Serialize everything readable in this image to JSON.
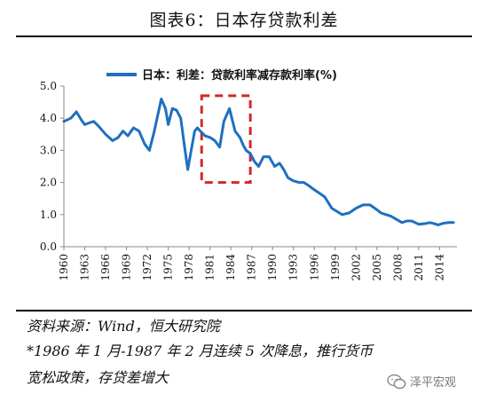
{
  "header": {
    "title": "图表6：日本存贷款利差"
  },
  "footer": {
    "source": "资料来源：Wind，恒大研究院",
    "note_line1": "*1986 年 1 月-1987 年 2 月连续 5 次降息，推行货币",
    "note_line2": "宽松政策，存贷差增大"
  },
  "watermark": {
    "text": "泽平宏观",
    "icon": "wechat-icon"
  },
  "colors": {
    "series": "#1F6FC0",
    "highlight": "#D62728"
  },
  "chart_data": {
    "type": "line",
    "legend": "日本：利差：贷款利率减存款利率(%)",
    "legend_position": "top",
    "ylim": [
      0,
      5
    ],
    "y_ticks": [
      "0.0",
      "1.0",
      "2.0",
      "3.0",
      "4.0",
      "5.0"
    ],
    "x_ticks": [
      "1960",
      "1963",
      "1966",
      "1969",
      "1972",
      "1975",
      "1978",
      "1981",
      "1984",
      "1987",
      "1990",
      "1993",
      "1996",
      "1999",
      "2002",
      "2005",
      "2008",
      "2011",
      "2014"
    ],
    "xlim": [
      1960,
      2016.5
    ],
    "grid": false,
    "highlight_range": {
      "x": [
        1979.8,
        1986.8
      ],
      "y": [
        2.0,
        4.7
      ]
    },
    "series": [
      {
        "name": "日本：利差：贷款利率减存款利率(%)",
        "x": [
          1960,
          1961,
          1961.8,
          1962.5,
          1963,
          1963.6,
          1964.3,
          1965,
          1966,
          1967,
          1967.8,
          1968.5,
          1969.2,
          1970,
          1970.8,
          1971.6,
          1972.3,
          1973,
          1974,
          1974.6,
          1975,
          1975.6,
          1976.2,
          1976.8,
          1977.3,
          1977.8,
          1978.3,
          1978.8,
          1979.2,
          1979.6,
          1980.3,
          1981,
          1981.7,
          1982.4,
          1983,
          1983.8,
          1984.6,
          1985.3,
          1985.8,
          1986.2,
          1986.8,
          1987.4,
          1988,
          1988.7,
          1989.5,
          1990.3,
          1991,
          1991.6,
          1992.2,
          1993,
          1993.8,
          1994.5,
          1995.2,
          1995.8,
          1996.5,
          1997.5,
          1998.5,
          2000,
          2001,
          2002,
          2003,
          2004,
          2005,
          2005.6,
          2006.3,
          2007,
          2007.8,
          2008.6,
          2009.3,
          2010,
          2011,
          2012,
          2012.6,
          2013.2,
          2013.8,
          2014.4,
          2015.2,
          2016
        ],
        "values": [
          3.9,
          4.0,
          4.2,
          3.95,
          3.8,
          3.85,
          3.9,
          3.75,
          3.5,
          3.3,
          3.4,
          3.6,
          3.45,
          3.7,
          3.6,
          3.2,
          3.0,
          3.6,
          4.6,
          4.3,
          3.8,
          4.3,
          4.25,
          4.0,
          3.2,
          2.4,
          3.0,
          3.6,
          3.7,
          3.6,
          3.45,
          3.4,
          3.3,
          3.1,
          3.9,
          4.3,
          3.6,
          3.4,
          3.15,
          3.0,
          2.9,
          2.65,
          2.5,
          2.8,
          2.8,
          2.5,
          2.6,
          2.4,
          2.15,
          2.05,
          2.0,
          2.0,
          1.9,
          1.8,
          1.7,
          1.55,
          1.2,
          1.0,
          1.05,
          1.2,
          1.3,
          1.3,
          1.15,
          1.05,
          1.0,
          0.95,
          0.85,
          0.75,
          0.8,
          0.8,
          0.7,
          0.72,
          0.75,
          0.72,
          0.68,
          0.72,
          0.75,
          0.75
        ]
      }
    ]
  }
}
